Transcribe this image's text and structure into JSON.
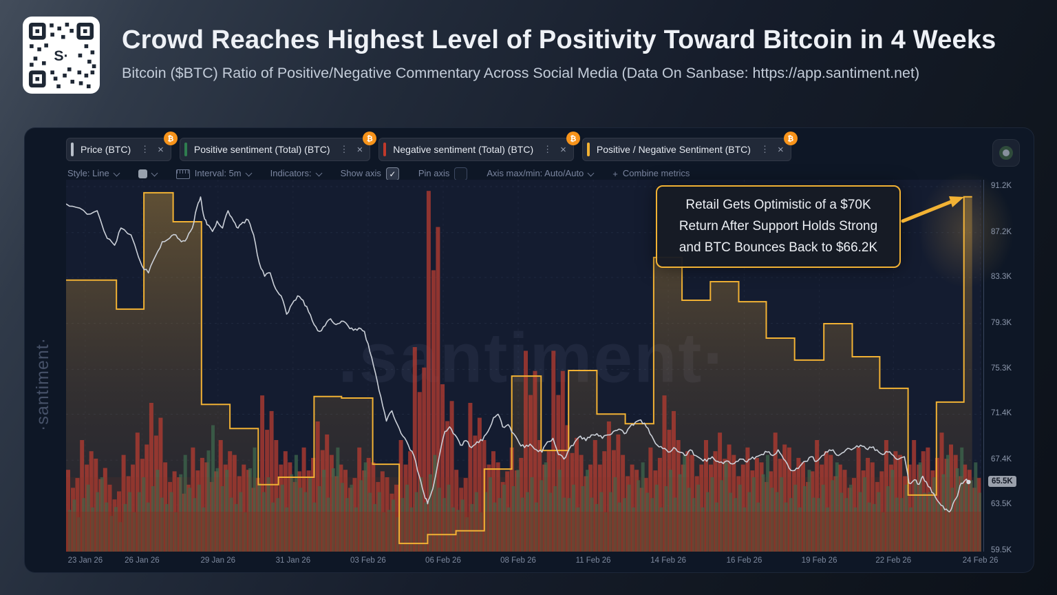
{
  "header": {
    "title": "Crowd Reaches Highest Level of Positivity Toward Bitcoin in 4 Weeks",
    "subtitle": "Bitcoin ($BTC) Ratio of Positive/Negative Commentary Across Social Media (Data On Sanbase: https://app.santiment.net)"
  },
  "qr": {
    "center_text": "S·"
  },
  "icons": {
    "menu": "⋮",
    "close": "×",
    "check": "✓",
    "plus": "+",
    "btc_badge": "₿"
  },
  "panel": {
    "tabs": [
      {
        "label": "Price (BTC)",
        "accent": "#b9c0ca"
      },
      {
        "label": "Positive sentiment (Total) (BTC)",
        "accent": "#2f7d4f"
      },
      {
        "label": "Negative sentiment (Total) (BTC)",
        "accent": "#c0392b"
      },
      {
        "label": "Positive / Negative Sentiment (BTC)",
        "accent": "#f2b234"
      }
    ],
    "toolbar": {
      "style": "Style: Line",
      "interval": "Interval: 5m",
      "indicators": "Indicators:",
      "show_axis": "Show axis",
      "show_axis_checked": true,
      "pin_axis": "Pin axis",
      "pin_axis_checked": false,
      "axis_maxmin": "Axis max/min: Auto/Auto",
      "combine_metrics": "Combine metrics"
    },
    "watermark_side": "·santiment·",
    "watermark_center": ".santiment·"
  },
  "annotation": {
    "line1": "Retail Gets Optimistic of a $70K",
    "line2": "Return After Support Holds Strong",
    "line3": "and BTC Bounces Back to $66.2K"
  },
  "chart_data": {
    "type": "mixed",
    "title": "Crowd Reaches Highest Level of Positivity Toward Bitcoin in 4 Weeks",
    "x_axis": {
      "labels": [
        "23 Jan 26",
        "26 Jan 26",
        "29 Jan 26",
        "31 Jan 26",
        "03 Feb 26",
        "06 Feb 26",
        "08 Feb 26",
        "11 Feb 26",
        "14 Feb 26",
        "16 Feb 26",
        "19 Feb 26",
        "22 Feb 26",
        "24 Feb 26"
      ],
      "positions": [
        0.021,
        0.083,
        0.166,
        0.248,
        0.33,
        0.412,
        0.494,
        0.576,
        0.658,
        0.741,
        0.823,
        0.904,
        0.999
      ],
      "grid": true
    },
    "y_axis": {
      "unit": "USD (thousands)",
      "ticks": [
        {
          "label": "91.2K",
          "value": 91.2
        },
        {
          "label": "87.2K",
          "value": 87.2
        },
        {
          "label": "83.3K",
          "value": 83.3
        },
        {
          "label": "79.3K",
          "value": 79.3
        },
        {
          "label": "75.3K",
          "value": 75.3
        },
        {
          "label": "71.4K",
          "value": 71.4
        },
        {
          "label": "67.4K",
          "value": 67.4
        },
        {
          "label": "63.5K",
          "value": 63.5
        },
        {
          "label": "59.5K",
          "value": 59.5
        }
      ],
      "current_price_label": "65.5K",
      "current_price": 65.5,
      "grid": true,
      "side": "right"
    },
    "series": [
      {
        "name": "Price (BTC)",
        "type": "line",
        "color": "#ccd1d9",
        "unit": "K USD",
        "points": [
          [
            0.0,
            89.7
          ],
          [
            0.011,
            89.4
          ],
          [
            0.023,
            88.8
          ],
          [
            0.034,
            89.1
          ],
          [
            0.045,
            86.7
          ],
          [
            0.053,
            86.1
          ],
          [
            0.06,
            87.6
          ],
          [
            0.071,
            87.0
          ],
          [
            0.083,
            84.3
          ],
          [
            0.09,
            83.7
          ],
          [
            0.098,
            85.2
          ],
          [
            0.105,
            86.4
          ],
          [
            0.113,
            86.7
          ],
          [
            0.12,
            87.0
          ],
          [
            0.126,
            86.4
          ],
          [
            0.132,
            86.7
          ],
          [
            0.138,
            87.6
          ],
          [
            0.143,
            89.4
          ],
          [
            0.147,
            90.3
          ],
          [
            0.15,
            88.8
          ],
          [
            0.154,
            87.9
          ],
          [
            0.16,
            87.3
          ],
          [
            0.165,
            88.2
          ],
          [
            0.171,
            87.6
          ],
          [
            0.177,
            89.1
          ],
          [
            0.183,
            88.2
          ],
          [
            0.188,
            87.6
          ],
          [
            0.193,
            88.1
          ],
          [
            0.199,
            88.3
          ],
          [
            0.205,
            87.0
          ],
          [
            0.211,
            84.6
          ],
          [
            0.217,
            83.4
          ],
          [
            0.223,
            83.7
          ],
          [
            0.229,
            82.3
          ],
          [
            0.235,
            81.7
          ],
          [
            0.241,
            80.1
          ],
          [
            0.247,
            81.0
          ],
          [
            0.253,
            81.7
          ],
          [
            0.259,
            81.3
          ],
          [
            0.265,
            80.3
          ],
          [
            0.271,
            79.2
          ],
          [
            0.277,
            78.6
          ],
          [
            0.283,
            79.1
          ],
          [
            0.289,
            79.7
          ],
          [
            0.295,
            79.2
          ],
          [
            0.301,
            79.5
          ],
          [
            0.308,
            79.1
          ],
          [
            0.314,
            78.7
          ],
          [
            0.32,
            78.9
          ],
          [
            0.326,
            78.6
          ],
          [
            0.332,
            76.8
          ],
          [
            0.338,
            75.0
          ],
          [
            0.344,
            72.9
          ],
          [
            0.35,
            70.8
          ],
          [
            0.356,
            71.7
          ],
          [
            0.362,
            70.5
          ],
          [
            0.368,
            69.5
          ],
          [
            0.374,
            68.7
          ],
          [
            0.38,
            67.8
          ],
          [
            0.386,
            66.0
          ],
          [
            0.391,
            64.5
          ],
          [
            0.395,
            63.6
          ],
          [
            0.398,
            64.3
          ],
          [
            0.402,
            65.4
          ],
          [
            0.408,
            67.8
          ],
          [
            0.414,
            69.9
          ],
          [
            0.419,
            70.3
          ],
          [
            0.425,
            69.6
          ],
          [
            0.431,
            68.7
          ],
          [
            0.437,
            69.1
          ],
          [
            0.443,
            68.5
          ],
          [
            0.449,
            69.0
          ],
          [
            0.455,
            69.1
          ],
          [
            0.461,
            69.9
          ],
          [
            0.467,
            71.1
          ],
          [
            0.472,
            71.4
          ],
          [
            0.477,
            70.3
          ],
          [
            0.483,
            70.5
          ],
          [
            0.489,
            69.7
          ],
          [
            0.495,
            68.9
          ],
          [
            0.501,
            68.5
          ],
          [
            0.507,
            68.8
          ],
          [
            0.514,
            68.3
          ],
          [
            0.52,
            68.1
          ],
          [
            0.526,
            69.0
          ],
          [
            0.532,
            69.3
          ],
          [
            0.538,
            67.9
          ],
          [
            0.544,
            67.5
          ],
          [
            0.55,
            68.4
          ],
          [
            0.556,
            69.0
          ],
          [
            0.562,
            69.5
          ],
          [
            0.568,
            69.1
          ],
          [
            0.574,
            69.6
          ],
          [
            0.58,
            69.7
          ],
          [
            0.586,
            69.3
          ],
          [
            0.592,
            69.6
          ],
          [
            0.598,
            69.9
          ],
          [
            0.604,
            70.1
          ],
          [
            0.61,
            69.7
          ],
          [
            0.616,
            70.3
          ],
          [
            0.622,
            70.7
          ],
          [
            0.628,
            70.9
          ],
          [
            0.634,
            70.3
          ],
          [
            0.64,
            69.5
          ],
          [
            0.646,
            68.7
          ],
          [
            0.652,
            68.4
          ],
          [
            0.658,
            68.1
          ],
          [
            0.664,
            68.5
          ],
          [
            0.67,
            68.1
          ],
          [
            0.676,
            67.8
          ],
          [
            0.682,
            68.3
          ],
          [
            0.688,
            67.8
          ],
          [
            0.694,
            67.5
          ],
          [
            0.7,
            67.3
          ],
          [
            0.706,
            67.7
          ],
          [
            0.712,
            67.3
          ],
          [
            0.718,
            67.1
          ],
          [
            0.724,
            67.3
          ],
          [
            0.73,
            67.1
          ],
          [
            0.736,
            67.5
          ],
          [
            0.742,
            67.3
          ],
          [
            0.748,
            67.5
          ],
          [
            0.754,
            67.7
          ],
          [
            0.76,
            67.9
          ],
          [
            0.766,
            68.1
          ],
          [
            0.772,
            67.8
          ],
          [
            0.778,
            68.3
          ],
          [
            0.784,
            67.5
          ],
          [
            0.79,
            66.7
          ],
          [
            0.796,
            66.5
          ],
          [
            0.802,
            66.9
          ],
          [
            0.808,
            67.3
          ],
          [
            0.814,
            67.7
          ],
          [
            0.82,
            67.3
          ],
          [
            0.826,
            67.8
          ],
          [
            0.832,
            68.1
          ],
          [
            0.838,
            68.3
          ],
          [
            0.844,
            67.8
          ],
          [
            0.85,
            68.1
          ],
          [
            0.856,
            68.4
          ],
          [
            0.862,
            68.5
          ],
          [
            0.868,
            68.7
          ],
          [
            0.874,
            68.4
          ],
          [
            0.88,
            68.5
          ],
          [
            0.886,
            68.3
          ],
          [
            0.892,
            67.9
          ],
          [
            0.898,
            68.1
          ],
          [
            0.904,
            67.8
          ],
          [
            0.91,
            67.5
          ],
          [
            0.916,
            67.7
          ],
          [
            0.921,
            65.4
          ],
          [
            0.927,
            65.7
          ],
          [
            0.932,
            65.3
          ],
          [
            0.936,
            66.0
          ],
          [
            0.942,
            65.1
          ],
          [
            0.948,
            64.5
          ],
          [
            0.954,
            63.7
          ],
          [
            0.96,
            63.1
          ],
          [
            0.965,
            62.9
          ],
          [
            0.969,
            63.6
          ],
          [
            0.974,
            64.3
          ],
          [
            0.978,
            65.4
          ],
          [
            0.983,
            65.7
          ],
          [
            0.986,
            65.5
          ]
        ]
      },
      {
        "name": "Positive / Negative Sentiment (BTC)",
        "type": "step_area",
        "color": "#f2b234",
        "unit": "relative (% of pane height, ratio axis hidden)",
        "steps": [
          [
            0.0,
            0.055,
            73.0
          ],
          [
            0.055,
            0.085,
            65.2
          ],
          [
            0.085,
            0.117,
            96.5
          ],
          [
            0.117,
            0.148,
            88.7
          ],
          [
            0.148,
            0.179,
            39.6
          ],
          [
            0.179,
            0.21,
            33.1
          ],
          [
            0.21,
            0.232,
            18.0
          ],
          [
            0.232,
            0.271,
            20.0
          ],
          [
            0.271,
            0.301,
            41.7
          ],
          [
            0.301,
            0.335,
            41.3
          ],
          [
            0.335,
            0.364,
            23.5
          ],
          [
            0.364,
            0.395,
            2.2
          ],
          [
            0.395,
            0.426,
            4.6
          ],
          [
            0.426,
            0.457,
            5.6
          ],
          [
            0.457,
            0.487,
            22.2
          ],
          [
            0.487,
            0.519,
            47.2
          ],
          [
            0.519,
            0.549,
            27.2
          ],
          [
            0.549,
            0.58,
            48.7
          ],
          [
            0.58,
            0.611,
            37.0
          ],
          [
            0.611,
            0.642,
            34.4
          ],
          [
            0.642,
            0.673,
            79.1
          ],
          [
            0.673,
            0.704,
            67.6
          ],
          [
            0.704,
            0.735,
            72.6
          ],
          [
            0.735,
            0.765,
            67.2
          ],
          [
            0.765,
            0.796,
            57.4
          ],
          [
            0.796,
            0.828,
            51.5
          ],
          [
            0.828,
            0.859,
            61.3
          ],
          [
            0.859,
            0.889,
            52.4
          ],
          [
            0.889,
            0.92,
            43.9
          ],
          [
            0.92,
            0.951,
            15.2
          ],
          [
            0.951,
            0.981,
            40.2
          ],
          [
            0.981,
            0.99,
            95.4
          ]
        ]
      },
      {
        "name": "Negative sentiment (Total) (BTC)",
        "type": "bars",
        "color": "#ae3b31",
        "unit": "relative (% of pane height)",
        "values": [
          22,
          30,
          25,
          18,
          26,
          32,
          40,
          24,
          20,
          28,
          24,
          30,
          26,
          22,
          42,
          30,
          24,
          28,
          35,
          26,
          22,
          28,
          24,
          20,
          30,
          55,
          97,
          45,
          22,
          40,
          30,
          24,
          28,
          54,
          30,
          54,
          34,
          26,
          30,
          35,
          26,
          22,
          28,
          42,
          30,
          26,
          30,
          32,
          26,
          28,
          24,
          32,
          28,
          24,
          30,
          26,
          22,
          28,
          24,
          30,
          26,
          30,
          28,
          32,
          26,
          22
        ]
      },
      {
        "name": "Positive sentiment (Total) (BTC)",
        "type": "bars",
        "color": "#3e6b4f",
        "unit": "relative (% of pane height)",
        "values": [
          14,
          18,
          20,
          12,
          16,
          20,
          22,
          16,
          26,
          18,
          34,
          22,
          16,
          28,
          20,
          18,
          26,
          20,
          22,
          28,
          18,
          24,
          16,
          14,
          18,
          20,
          26,
          18,
          14,
          16,
          20,
          18,
          22,
          20,
          24,
          22,
          18,
          22,
          16,
          20,
          18,
          24,
          18,
          22,
          26,
          18,
          20,
          24,
          18,
          20,
          26,
          20,
          18,
          22,
          18,
          24,
          18,
          20,
          16,
          22,
          18,
          24,
          20,
          26,
          28,
          24
        ]
      }
    ]
  }
}
